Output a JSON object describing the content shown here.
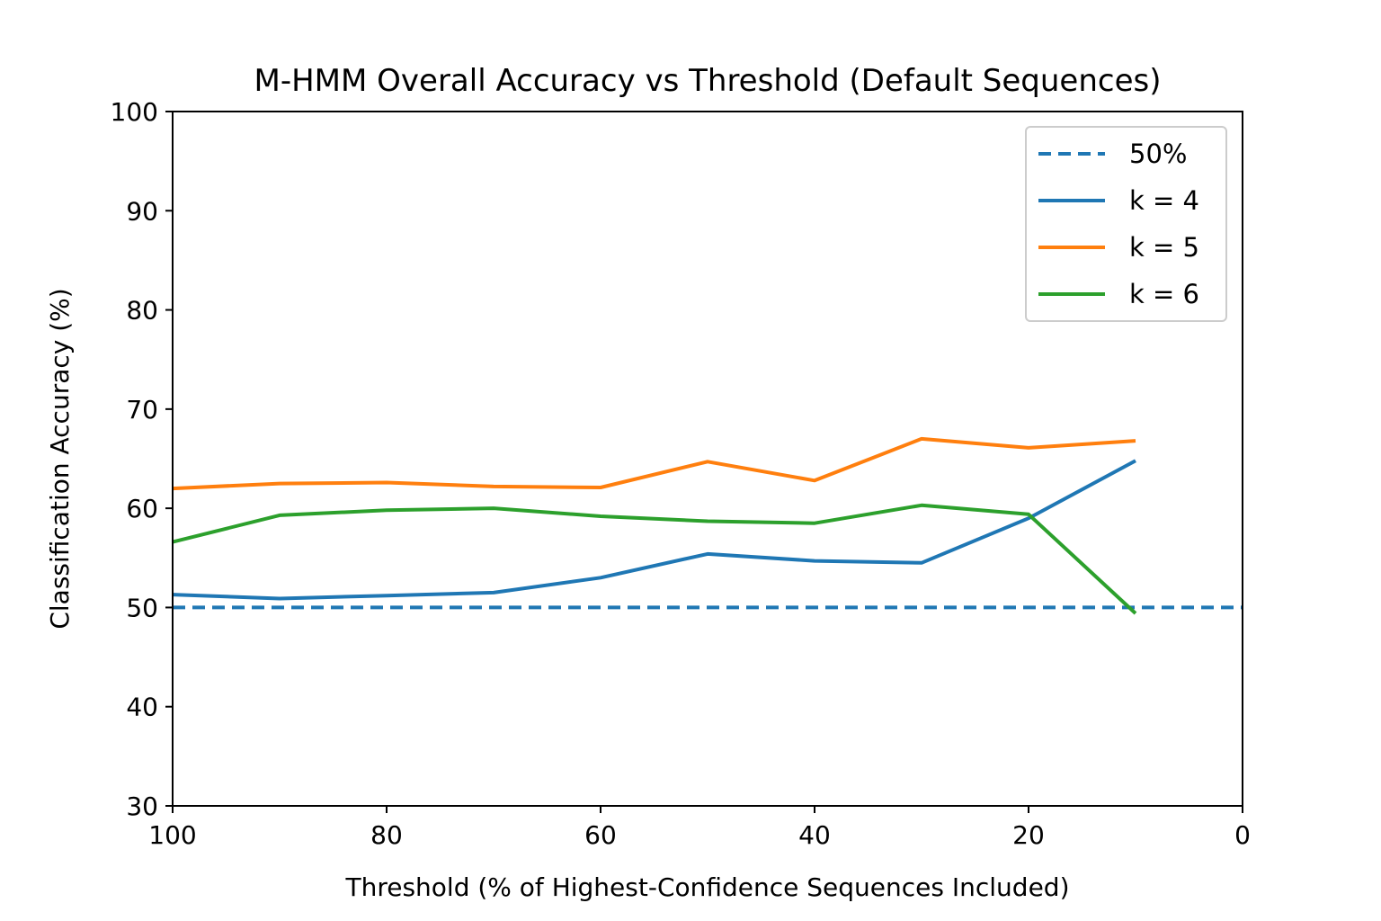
{
  "chart_data": {
    "type": "line",
    "title": "M-HMM Overall Accuracy vs Threshold (Default Sequences)",
    "xlabel": "Threshold (% of Highest-Confidence Sequences Included)",
    "ylabel": "Classification Accuracy (%)",
    "xlim": [
      100,
      0
    ],
    "ylim": [
      30,
      100
    ],
    "x_ticks": [
      "100",
      "80",
      "60",
      "40",
      "20",
      "0"
    ],
    "y_ticks": [
      "30",
      "40",
      "50",
      "60",
      "70",
      "80",
      "90",
      "100"
    ],
    "legend_position": "top-right",
    "reference_line": {
      "name": "50%",
      "y": 50,
      "style": "dashed",
      "color": "#1f77b4"
    },
    "x": [
      100,
      90,
      80,
      70,
      60,
      50,
      40,
      30,
      20,
      10
    ],
    "series": [
      {
        "name": "k = 4",
        "color": "#1f77b4",
        "values": [
          51.3,
          50.9,
          51.2,
          51.5,
          53.0,
          55.4,
          54.7,
          54.5,
          59.0,
          64.8
        ]
      },
      {
        "name": "k = 5",
        "color": "#ff7f0e",
        "values": [
          62.0,
          62.5,
          62.6,
          62.2,
          62.1,
          64.7,
          62.8,
          67.0,
          66.1,
          66.8
        ]
      },
      {
        "name": "k = 6",
        "color": "#2ca02c",
        "values": [
          56.6,
          59.3,
          59.8,
          60.0,
          59.2,
          58.7,
          58.5,
          60.3,
          59.4,
          49.4
        ]
      }
    ]
  }
}
